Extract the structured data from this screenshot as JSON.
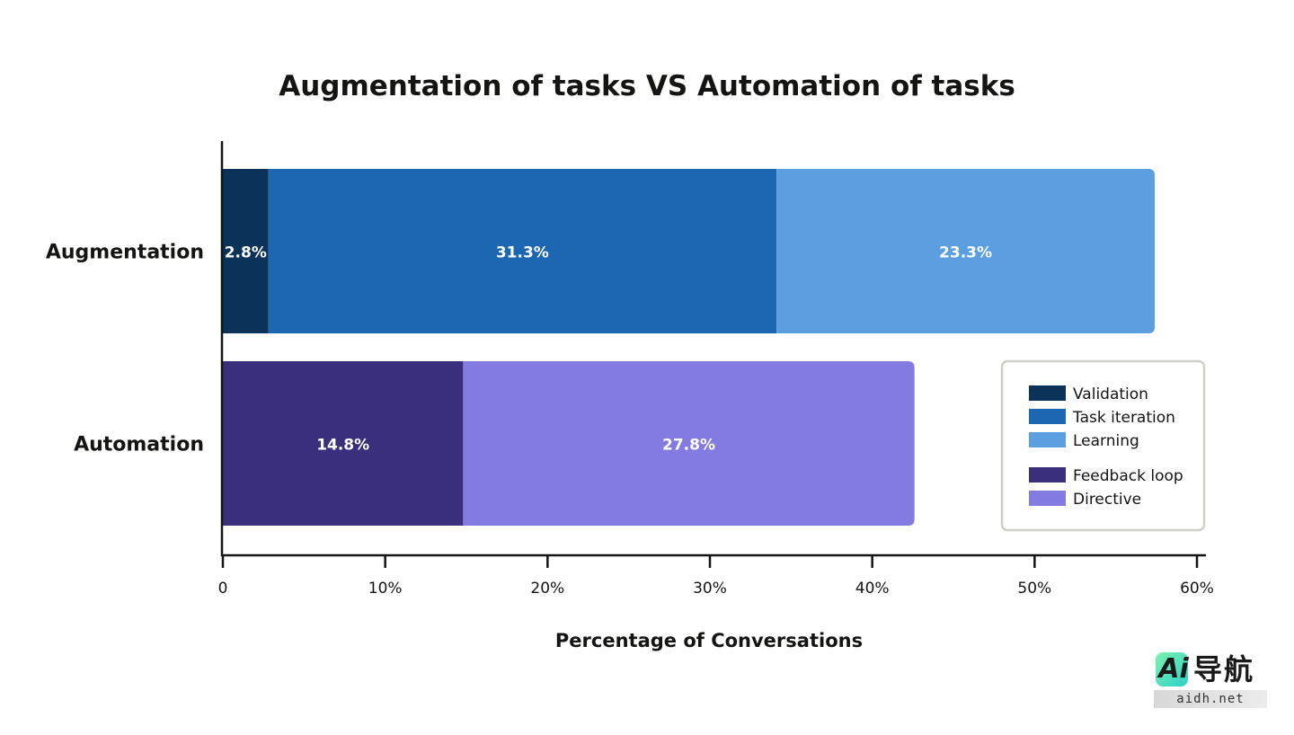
{
  "chart_data": {
    "type": "bar",
    "orientation": "horizontal",
    "stacked": true,
    "title": "Augmentation of tasks VS Automation of tasks",
    "xlabel": "Percentage of Conversations",
    "ylabel": "",
    "xlim": [
      0,
      60
    ],
    "xticks": [
      0,
      10,
      20,
      30,
      40,
      50,
      60
    ],
    "xtick_labels": [
      "0",
      "10%",
      "20%",
      "30%",
      "40%",
      "50%",
      "60%"
    ],
    "categories": [
      "Augmentation",
      "Automation"
    ],
    "series": [
      {
        "name": "Validation",
        "color": "#0b3259",
        "values": [
          2.8,
          null
        ],
        "labels": [
          "2.8%",
          ""
        ]
      },
      {
        "name": "Task iteration",
        "color": "#1d67b2",
        "values": [
          31.3,
          null
        ],
        "labels": [
          "31.3%",
          ""
        ]
      },
      {
        "name": "Learning",
        "color": "#5b9fe1",
        "values": [
          23.3,
          null
        ],
        "labels": [
          "23.3%",
          ""
        ]
      },
      {
        "name": "Feedback loop",
        "color": "#3a2f7c",
        "values": [
          null,
          14.8
        ],
        "labels": [
          "",
          "14.8%"
        ]
      },
      {
        "name": "Directive",
        "color": "#837be0",
        "values": [
          null,
          27.8
        ],
        "labels": [
          "",
          "27.8%"
        ]
      }
    ],
    "legend": {
      "position": "right",
      "groups": [
        [
          "Validation",
          "Task iteration",
          "Learning"
        ],
        [
          "Feedback loop",
          "Directive"
        ]
      ]
    },
    "grid": false
  },
  "watermark": {
    "logo_text": "Ai",
    "logo_cn": "导航",
    "url": "aidh.net"
  }
}
